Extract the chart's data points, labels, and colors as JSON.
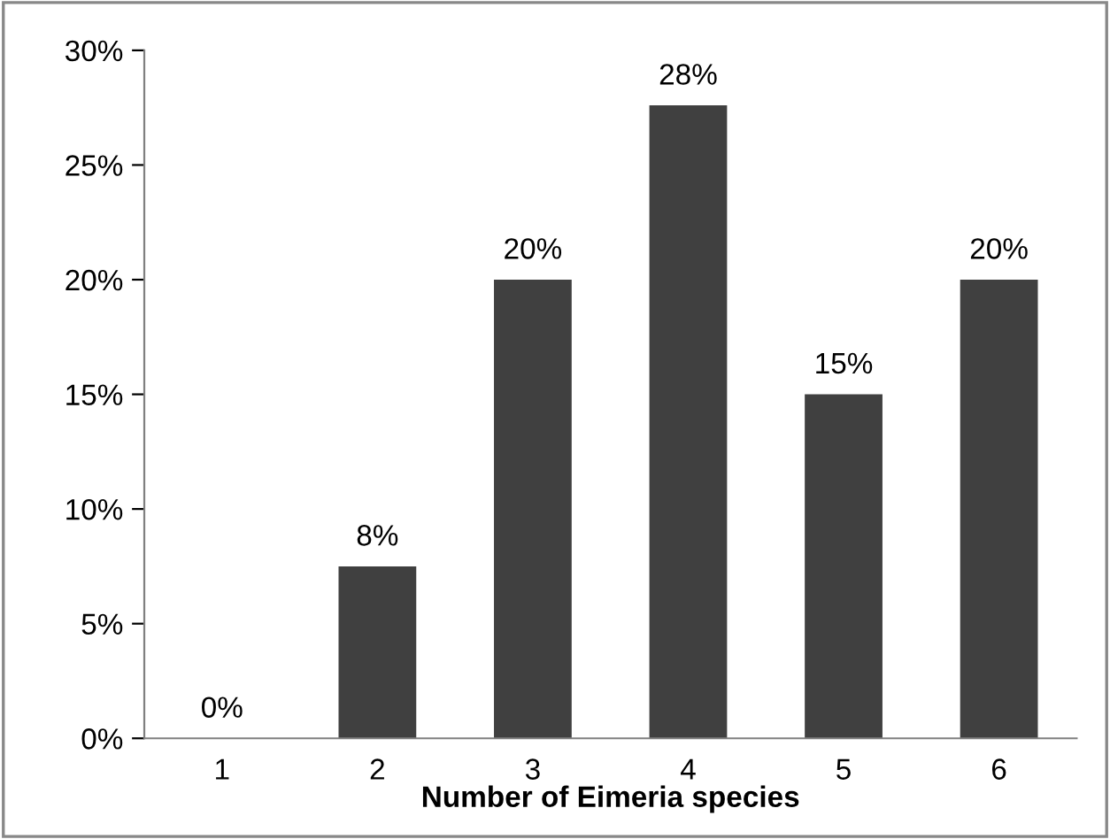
{
  "chart_data": {
    "type": "bar",
    "xlabel": "Number of Eimeria species",
    "categories": [
      "1",
      "2",
      "3",
      "4",
      "5",
      "6"
    ],
    "values": [
      0,
      7.5,
      20,
      27.6,
      15,
      20
    ],
    "value_labels": [
      "0%",
      "8%",
      "20%",
      "28%",
      "15%",
      "20%"
    ],
    "color": "#404040",
    "ylim": [
      0,
      30
    ],
    "yticks": [
      {
        "value": 0,
        "label": "0%"
      },
      {
        "value": 5,
        "label": "5%"
      },
      {
        "value": 10,
        "label": "10%"
      },
      {
        "value": 15,
        "label": "15%"
      },
      {
        "value": 20,
        "label": "20%"
      },
      {
        "value": 25,
        "label": "25%"
      },
      {
        "value": 30,
        "label": "30%"
      }
    ],
    "grid": false,
    "legend": false
  }
}
